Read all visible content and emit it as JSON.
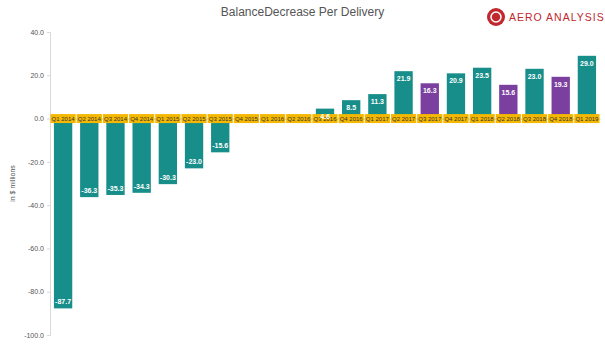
{
  "chart_data": {
    "type": "bar",
    "title": "BalanceDecrease Per Delivery",
    "y_label": "in $ millions",
    "annotations": [
      "AERO ANALYSIS"
    ],
    "categories": [
      "Q1 2014",
      "Q2 2014",
      "Q3 2014",
      "Q4 2014",
      "Q1 2015",
      "Q2 2015",
      "Q3 2015",
      "Q4 2015",
      "Q1 2016",
      "Q2 2016",
      "Q3 2016",
      "Q4 2016",
      "Q1 2017",
      "Q2 2017",
      "Q3 2017",
      "Q4 2017",
      "Q1 2018",
      "Q2 2018",
      "Q3 2018",
      "Q4 2018",
      "Q1 2019"
    ],
    "values": [
      -87.7,
      -36.3,
      -35.3,
      -34.3,
      -30.3,
      -23.0,
      -15.6,
      -0.2,
      -0.5,
      0.4,
      4.6,
      8.5,
      11.3,
      21.9,
      16.3,
      20.9,
      23.5,
      15.6,
      23.0,
      19.3,
      29.0
    ],
    "value_labels": [
      "-87.7",
      "-36.3",
      "-35.3",
      "-34.3",
      "-30.3",
      "-23.0",
      "-15.6",
      null,
      null,
      null,
      "4.6",
      "8.5",
      "11.3",
      "21.9",
      "16.3",
      "20.9",
      "23.5",
      "15.6",
      "23.0",
      "19.3",
      "29.0"
    ],
    "colors": [
      "#178e8a",
      "#178e8a",
      "#178e8a",
      "#178e8a",
      "#178e8a",
      "#178e8a",
      "#178e8a",
      "#178e8a",
      "#178e8a",
      "#178e8a",
      "#178e8a",
      "#178e8a",
      "#178e8a",
      "#178e8a",
      "#7b3fa0",
      "#178e8a",
      "#178e8a",
      "#7b3fa0",
      "#178e8a",
      "#7b3fa0",
      "#178e8a"
    ],
    "ylim": [
      -100,
      40
    ],
    "yticks": [
      {
        "value": -100,
        "label": "-100.0"
      },
      {
        "value": -80,
        "label": "-80.0"
      },
      {
        "value": -60,
        "label": "-60.0"
      },
      {
        "value": -40,
        "label": "-40.0"
      },
      {
        "value": -20,
        "label": "-20.0"
      },
      {
        "value": 0,
        "label": "0.0"
      },
      {
        "value": 20,
        "label": "20.0"
      },
      {
        "value": 40,
        "label": "40.0"
      }
    ],
    "grid": false,
    "data_labels": true
  }
}
